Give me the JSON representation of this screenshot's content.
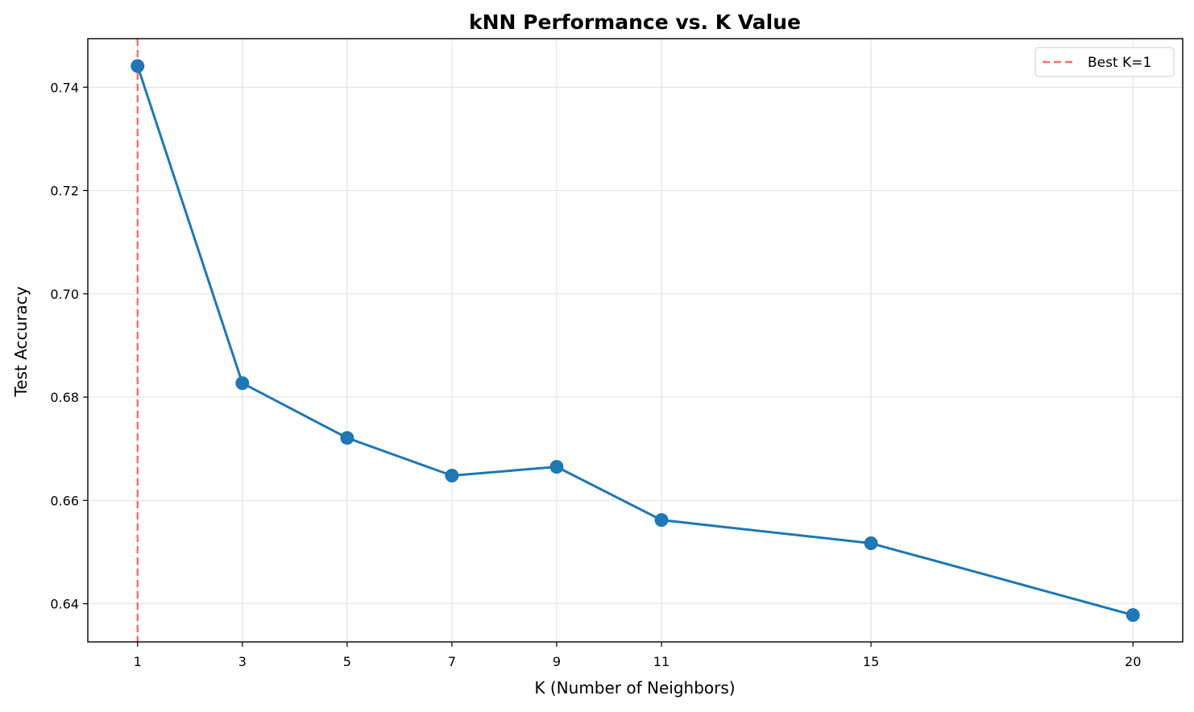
{
  "chart_data": {
    "type": "line",
    "title": "kNN Performance vs. K Value",
    "xlabel": "K (Number of Neighbors)",
    "ylabel": "Test Accuracy",
    "x": [
      1,
      3,
      5,
      7,
      9,
      11,
      15,
      20
    ],
    "xticks": [
      1,
      3,
      5,
      7,
      9,
      11,
      15,
      20
    ],
    "xtick_labels": [
      "1",
      "3",
      "5",
      "7",
      "9",
      "11",
      "15",
      "20"
    ],
    "xlim": [
      0.05,
      20.95
    ],
    "yticks": [
      0.64,
      0.66,
      0.68,
      0.7,
      0.72,
      0.74
    ],
    "ytick_labels": [
      "0.64",
      "0.66",
      "0.68",
      "0.70",
      "0.72",
      "0.74"
    ],
    "ylim": [
      0.6326,
      0.7494
    ],
    "grid": true,
    "series": [
      {
        "values": [
          0.7441,
          0.6827,
          0.6721,
          0.6648,
          0.6665,
          0.6562,
          0.6517,
          0.6378
        ],
        "color": "#1f77b4",
        "marker": "circle"
      }
    ],
    "reference_lines": [
      {
        "orientation": "vertical",
        "x": 1,
        "label": "Best K=1",
        "color": "#f07070",
        "style": "dashed"
      }
    ],
    "legend": {
      "placement": "top-right",
      "entries": [
        "Best K=1"
      ]
    }
  }
}
